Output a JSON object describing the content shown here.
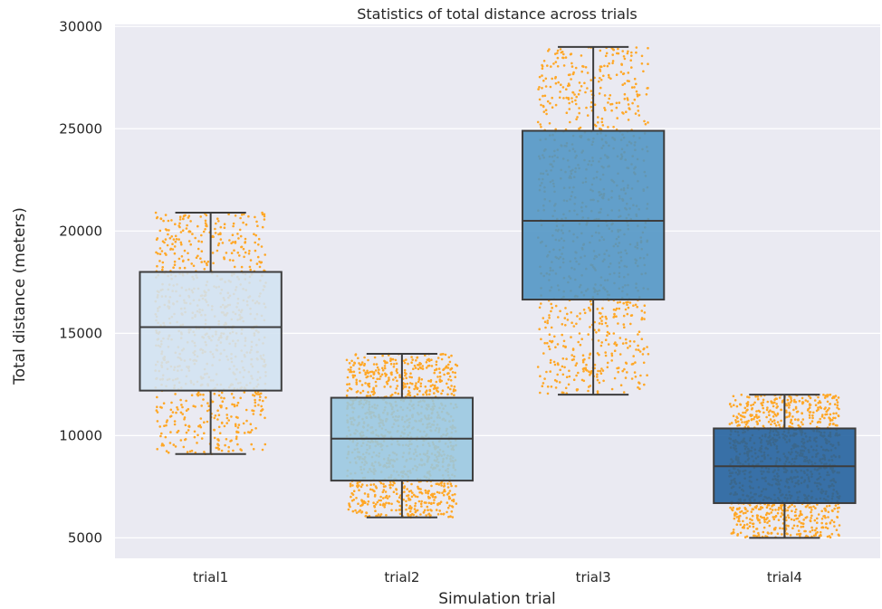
{
  "chart_data": {
    "type": "box",
    "title": "Statistics of total distance across trials",
    "xlabel": "Simulation trial",
    "ylabel": "Total distance (meters)",
    "categories": [
      "trial1",
      "trial2",
      "trial3",
      "trial4"
    ],
    "ylim": [
      4000,
      30100
    ],
    "yticks": [
      5000,
      10000,
      15000,
      20000,
      25000,
      30000
    ],
    "grid": true,
    "boxes": [
      {
        "category": "trial1",
        "whisker_low": 9100,
        "q1": 12200,
        "median": 15300,
        "q3": 18000,
        "whisker_high": 20900,
        "color": "#d2e3f1",
        "n_points": 900
      },
      {
        "category": "trial2",
        "whisker_low": 6000,
        "q1": 7800,
        "median": 9850,
        "q3": 11850,
        "whisker_high": 14000,
        "color": "#99c7e0",
        "n_points": 1200
      },
      {
        "category": "trial3",
        "whisker_low": 12000,
        "q1": 16650,
        "median": 20500,
        "q3": 24900,
        "whisker_high": 29000,
        "color": "#4f94c4",
        "n_points": 1000
      },
      {
        "category": "trial4",
        "whisker_low": 5000,
        "q1": 6700,
        "median": 8500,
        "q3": 10350,
        "whisker_high": 12000,
        "color": "#1f5f9c",
        "n_points": 1200
      }
    ],
    "point_color": "#ffa726",
    "box_edge_color": "#3d3d3d",
    "plot_background": "#eaeaf2"
  }
}
